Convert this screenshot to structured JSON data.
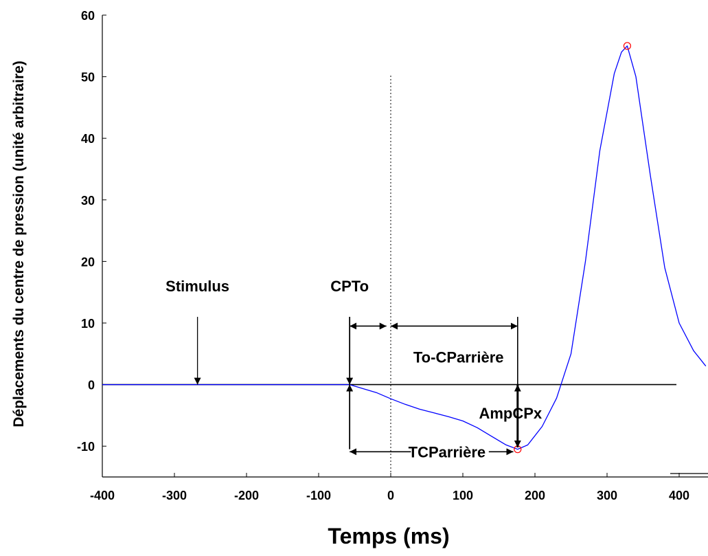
{
  "chart_data": {
    "type": "line",
    "title": "",
    "xlabel": "Temps (ms)",
    "ylabel": "Déplacements du centre de pression (unité arbitraire)",
    "xlim": [
      -400,
      440
    ],
    "ylim": [
      -15,
      60
    ],
    "xticks": [
      -400,
      -300,
      -200,
      -100,
      0,
      100,
      200,
      300,
      400
    ],
    "yticks": [
      -10,
      0,
      10,
      20,
      30,
      40,
      50,
      60
    ],
    "xtick_labels": [
      "-400",
      "-300",
      "-200",
      "-100",
      "0",
      "100",
      "200",
      "300",
      "400"
    ],
    "ytick_labels": [
      "-10",
      "0",
      "10",
      "20",
      "30",
      "40",
      "50",
      "60"
    ],
    "grid": false,
    "series": [
      {
        "color": "#0000ff",
        "x": [
          -400,
          -300,
          -200,
          -100,
          -57,
          -40,
          -20,
          0,
          20,
          40,
          60,
          80,
          100,
          120,
          140,
          160,
          176,
          190,
          210,
          230,
          250,
          270,
          290,
          310,
          320,
          328,
          340,
          360,
          380,
          400,
          420,
          437
        ],
        "y": [
          0,
          0,
          0,
          0,
          0,
          -0.6,
          -1.3,
          -2.3,
          -3.2,
          -4.0,
          -4.6,
          -5.2,
          -5.9,
          -7.0,
          -8.4,
          -9.8,
          -10.5,
          -9.8,
          -6.8,
          -2.2,
          5,
          20,
          38,
          50.5,
          54,
          55,
          50,
          34,
          19,
          10,
          5.5,
          3
        ]
      }
    ],
    "markers": [
      {
        "x": 176,
        "y": -10.5,
        "color": "#ff0000"
      },
      {
        "x": 328,
        "y": 55,
        "color": "#ff0000"
      }
    ],
    "reference_lines": [
      {
        "orientation": "horizontal",
        "value": 0,
        "color": "#000000",
        "style": "solid"
      },
      {
        "orientation": "vertical",
        "value": 0,
        "color": "#000000",
        "style": "dotted"
      }
    ],
    "annotations": [
      {
        "text": "Stimulus",
        "x": -268,
        "y": 16
      },
      {
        "text": "CPTo",
        "x": -57,
        "y": 16
      },
      {
        "text": "To-CParrière",
        "x": 94,
        "y": 4.5
      },
      {
        "text": "AmpCPx",
        "x": 166,
        "y": -4.6
      },
      {
        "text": "TCParrière",
        "x": 78,
        "y": -10.9
      }
    ]
  }
}
